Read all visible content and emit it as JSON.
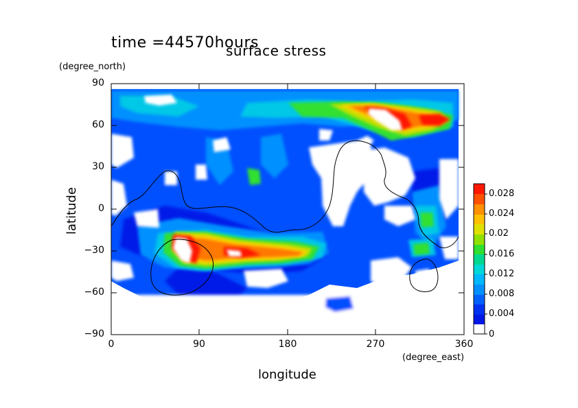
{
  "titles": {
    "time": "time =44570hours",
    "main": "surface stress"
  },
  "units": {
    "north": "(degree_north)",
    "east": "(degree_east)"
  },
  "colors": {
    "scale": [
      "#ffffff",
      "#0018e6",
      "#0050ff",
      "#0090ff",
      "#00c8e6",
      "#00d890",
      "#30e030",
      "#c0e000",
      "#ffd000",
      "#ff7800",
      "#ff1800"
    ]
  },
  "chart_data": {
    "type": "heatmap",
    "title": "surface stress",
    "xlabel": "longitude",
    "ylabel": "latitude",
    "xlim": [
      0,
      360
    ],
    "ylim": [
      -90,
      90
    ],
    "x_ticks": [
      "0",
      "90",
      "180",
      "270",
      "360"
    ],
    "y_ticks": [
      "90",
      "60",
      "30",
      "0",
      "−30",
      "−60",
      "−90"
    ],
    "colorbar": {
      "min": 0,
      "max": 0.03,
      "ticks": [
        "0.028",
        "0.024",
        "0.02",
        "0.016",
        "0.012",
        "0.008",
        "0.004",
        "0"
      ]
    },
    "maxima": [
      {
        "lon": 290,
        "lat": 65,
        "value": 0.03
      },
      {
        "lon": 320,
        "lat": 65,
        "value": 0.026
      },
      {
        "lon": 75,
        "lat": -28,
        "value": 0.03
      },
      {
        "lon": 130,
        "lat": -28,
        "value": 0.024
      }
    ]
  }
}
